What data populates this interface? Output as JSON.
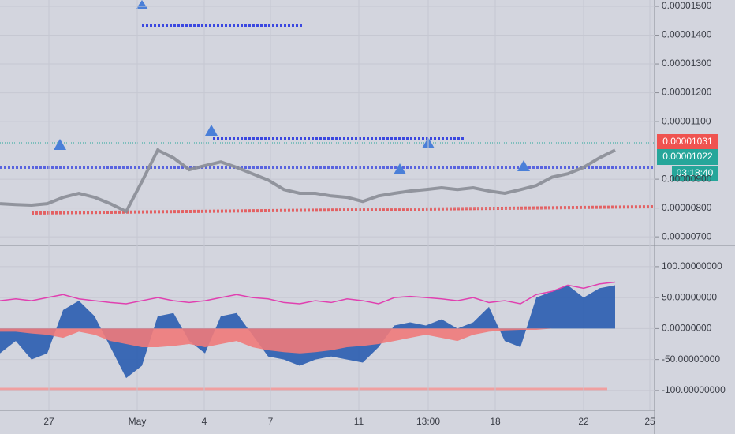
{
  "chart_data": [
    {
      "type": "line",
      "color": "#8a8d96",
      "values": [
        8.15e-06,
        8.12e-06,
        8.1e-06,
        8.15e-06,
        8.37e-06,
        8.51e-06,
        8.37e-06,
        8.15e-06,
        7.88e-06,
        8.92e-06,
        1.001e-05,
        9.74e-06,
        9.33e-06,
        9.47e-06,
        9.6e-06,
        9.41e-06,
        9.19e-06,
        8.97e-06,
        8.64e-06,
        8.51e-06,
        8.51e-06,
        8.42e-06,
        8.37e-06,
        8.23e-06,
        8.42e-06,
        8.51e-06,
        8.59e-06,
        8.64e-06,
        8.7e-06,
        8.64e-06,
        8.7e-06,
        8.59e-06,
        8.51e-06,
        8.64e-06,
        8.78e-06,
        9.07e-06,
        9.19e-06,
        9.41e-06,
        9.74e-06,
        1.001e-05
      ],
      "ylim": [
        6.73e-06,
        1.522e-05
      ],
      "yticks": [
        {
          "value": 1.5e-05,
          "label": "0.00001500"
        },
        {
          "value": 1.4e-05,
          "label": "0.00001400"
        },
        {
          "value": 1.3e-05,
          "label": "0.00001300"
        },
        {
          "value": 1.2e-05,
          "label": "0.00001200"
        },
        {
          "value": 1.1e-05,
          "label": "0.00001100"
        },
        {
          "value": 9e-06,
          "label": "0.00000900"
        },
        {
          "value": 8e-06,
          "label": "0.00000800"
        },
        {
          "value": 7e-06,
          "label": "0.00000700"
        }
      ],
      "grid": true,
      "annotations": [
        "0.00001031",
        "0.00001022",
        "03:18:40"
      ]
    },
    {
      "type": "area",
      "series": [
        {
          "color": "#2a5db0",
          "values": [
            -40,
            -20,
            -50,
            -40,
            30,
            45,
            20,
            -30,
            -80,
            -60,
            20,
            25,
            -20,
            -40,
            20,
            25,
            -10,
            -45,
            -50,
            -60,
            -50,
            -45,
            -50,
            -55,
            -30,
            5,
            10,
            5,
            15,
            0,
            10,
            35,
            -20,
            -30,
            50,
            60,
            70,
            50,
            65,
            70
          ]
        },
        {
          "color": "#f07a7a",
          "values": [
            -5,
            -5,
            -8,
            -10,
            -15,
            -5,
            -10,
            -20,
            -25,
            -30,
            -30,
            -28,
            -25,
            -30,
            -25,
            -20,
            -30,
            -35,
            -38,
            -40,
            -38,
            -35,
            -30,
            -28,
            -25,
            -20,
            -15,
            -10,
            -15,
            -20,
            -10,
            -5,
            -3,
            -2,
            -2,
            0,
            0,
            0,
            0,
            0
          ]
        },
        {
          "color": "#e040b0",
          "values": [
            45,
            48,
            45,
            50,
            55,
            48,
            45,
            42,
            40,
            45,
            50,
            45,
            42,
            45,
            50,
            55,
            50,
            48,
            42,
            40,
            45,
            42,
            48,
            45,
            40,
            50,
            52,
            50,
            48,
            45,
            50,
            42,
            45,
            40,
            55,
            60,
            70,
            65,
            72,
            75
          ]
        }
      ],
      "ylim": [
        -132,
        133
      ],
      "yticks": [
        {
          "value": 100,
          "label": "100.00000000"
        },
        {
          "value": 50,
          "label": "50.00000000"
        },
        {
          "value": 0,
          "label": "0.00000000"
        },
        {
          "value": -50,
          "label": "-50.00000000"
        },
        {
          "value": -100,
          "label": "-100.00000000"
        }
      ],
      "grid": true,
      "xtick_labels": [
        "27",
        "May",
        "4",
        "7",
        "11",
        "13:00",
        "18",
        "22",
        "25"
      ]
    }
  ]
}
